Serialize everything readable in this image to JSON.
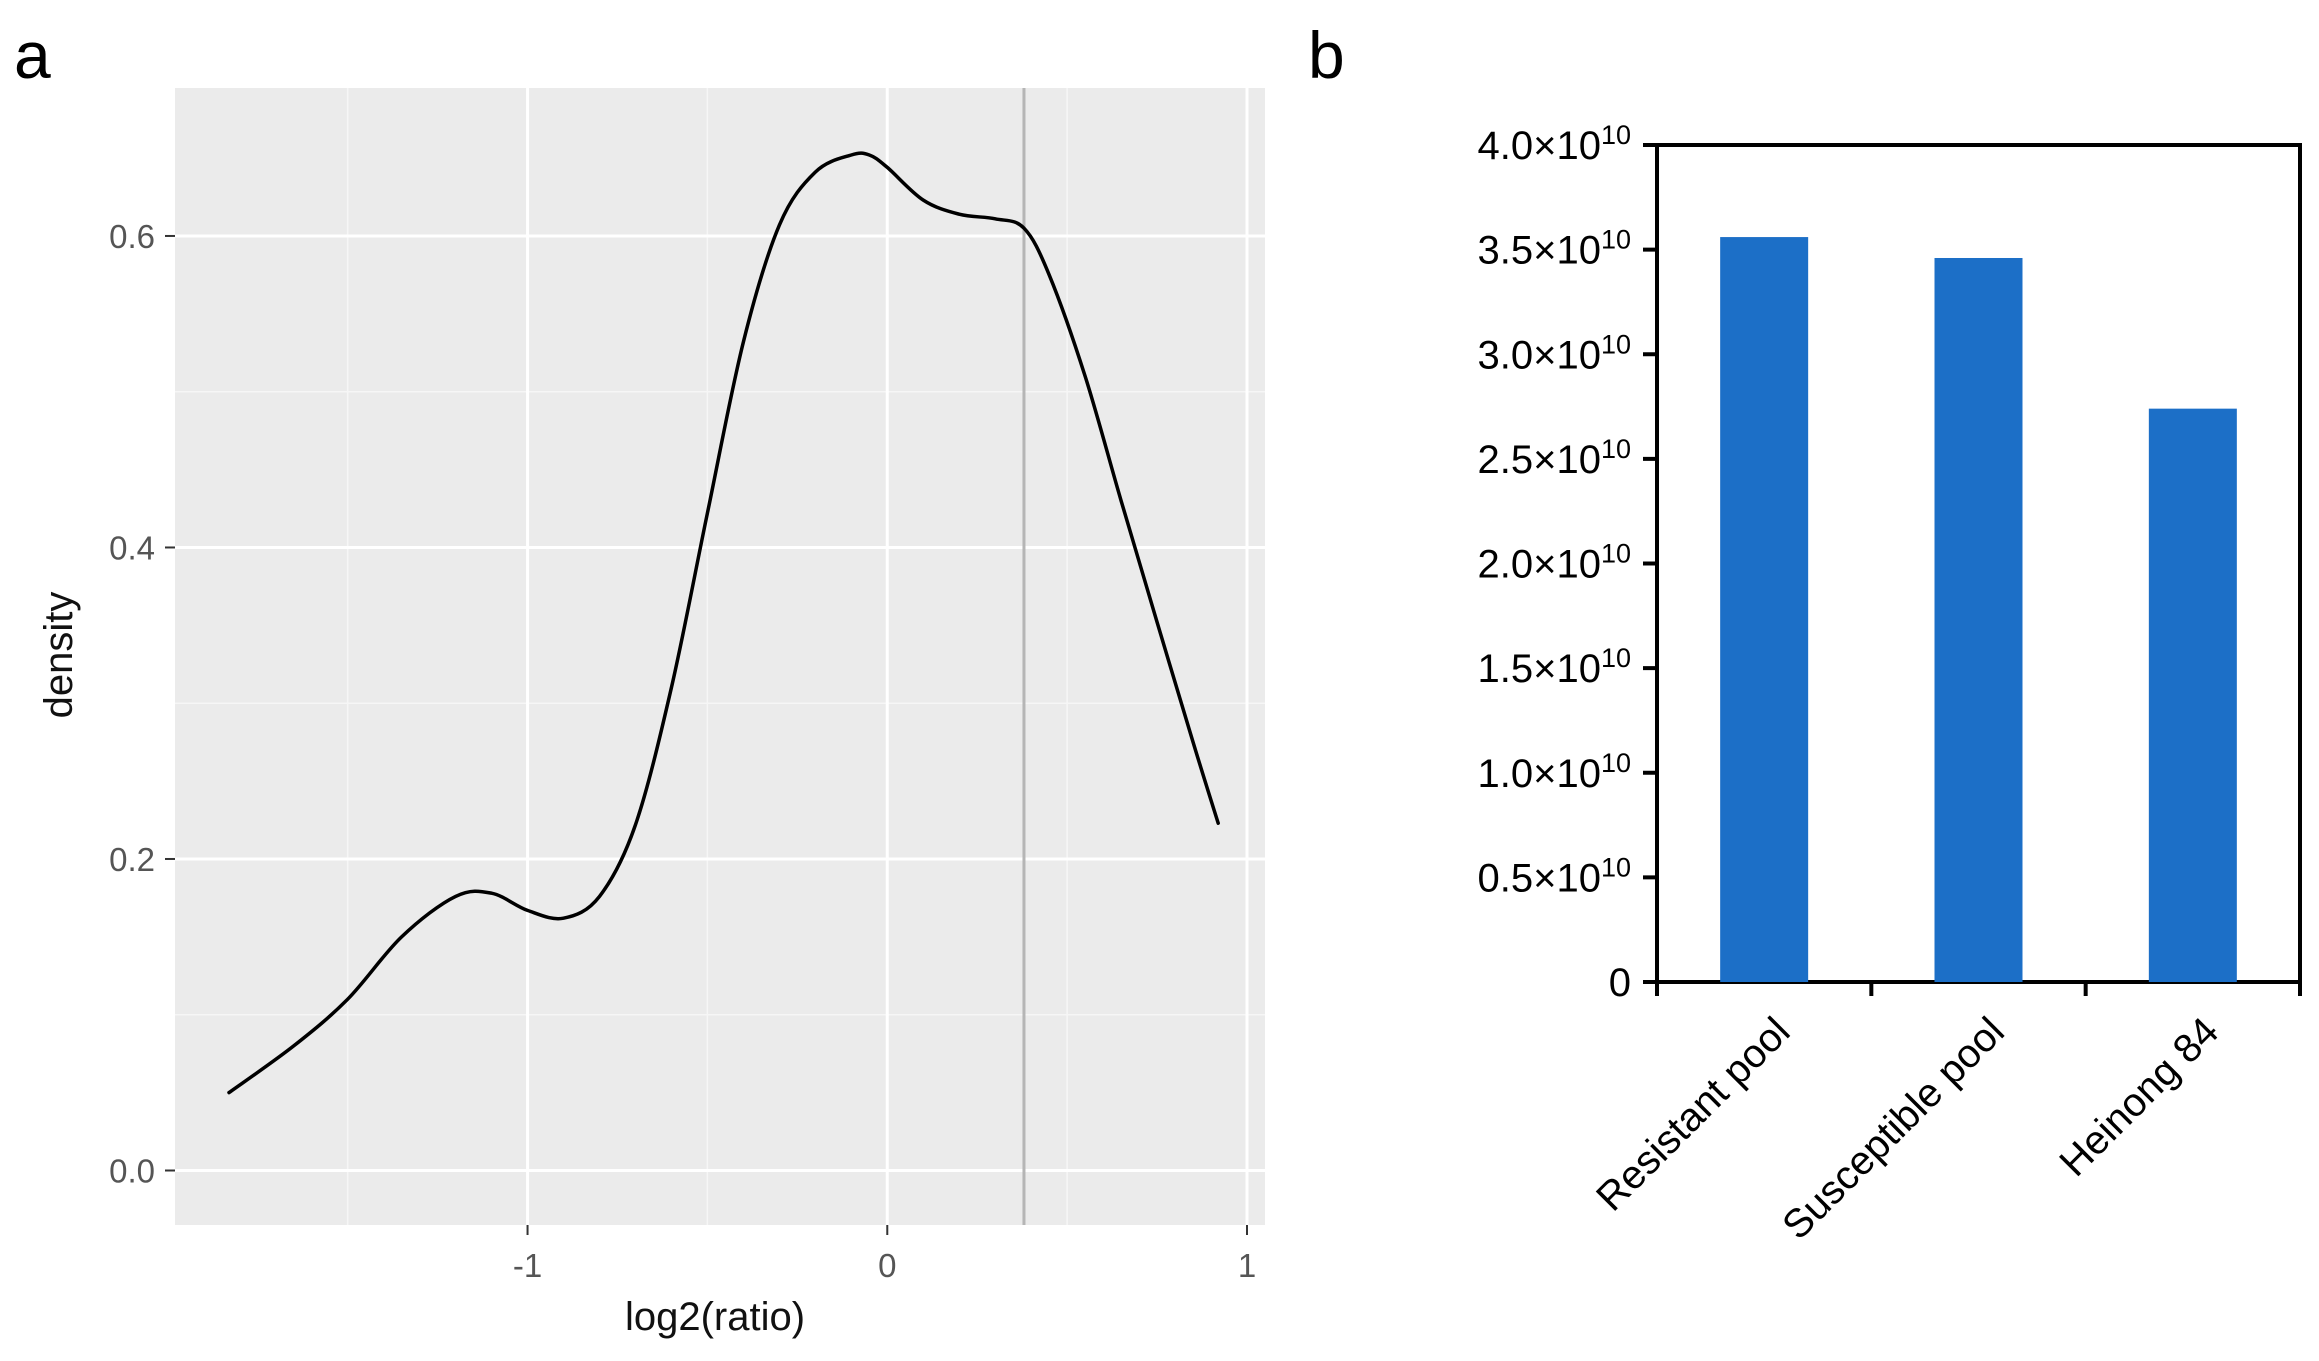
{
  "panels": {
    "a": {
      "letter": "a"
    },
    "b": {
      "letter": "b"
    }
  },
  "chart_data": [
    {
      "panel": "a",
      "type": "line",
      "title": "",
      "xlabel": "log2(ratio)",
      "ylabel": "density",
      "xlim": [
        -1.98,
        1.05
      ],
      "ylim": [
        -0.035,
        0.695
      ],
      "grid": true,
      "background": "#ebebeb",
      "line_color": "#000000",
      "x_ticks": [
        {
          "value": -1,
          "label": "-1"
        },
        {
          "value": 0,
          "label": "0"
        },
        {
          "value": 1,
          "label": "1"
        }
      ],
      "y_ticks": [
        {
          "value": 0.0,
          "label": "0.0"
        },
        {
          "value": 0.2,
          "label": "0.2"
        },
        {
          "value": 0.4,
          "label": "0.4"
        },
        {
          "value": 0.6,
          "label": "0.6"
        }
      ],
      "vline": {
        "x": 0.38,
        "color": "#b5b5b5"
      },
      "series": [
        {
          "name": "density",
          "x": [
            -1.83,
            -1.65,
            -1.5,
            -1.35,
            -1.2,
            -1.1,
            -1.0,
            -0.9,
            -0.8,
            -0.7,
            -0.6,
            -0.5,
            -0.4,
            -0.3,
            -0.2,
            -0.1,
            -0.05,
            0.0,
            0.1,
            0.2,
            0.3,
            0.38,
            0.45,
            0.55,
            0.65,
            0.75,
            0.85,
            0.92
          ],
          "y": [
            0.05,
            0.08,
            0.11,
            0.15,
            0.176,
            0.178,
            0.167,
            0.162,
            0.176,
            0.222,
            0.31,
            0.422,
            0.532,
            0.607,
            0.641,
            0.652,
            0.652,
            0.644,
            0.623,
            0.614,
            0.611,
            0.605,
            0.575,
            0.51,
            0.43,
            0.352,
            0.275,
            0.223
          ]
        }
      ]
    },
    {
      "panel": "b",
      "type": "bar",
      "title": "",
      "xlabel": "",
      "ylabel": "",
      "ylim": [
        0,
        40000000000
      ],
      "grid": false,
      "bar_color": "#1c6fc7",
      "categories": [
        "Resistant pool",
        "Susceptible pool",
        "Heinong 84"
      ],
      "values": [
        35600000000,
        34600000000,
        27400000000
      ],
      "y_ticks": [
        {
          "value": 0,
          "mantissa": "0",
          "exponent": ""
        },
        {
          "value": 5000000000,
          "mantissa": "0.5×10",
          "exponent": "10"
        },
        {
          "value": 10000000000,
          "mantissa": "1.0×10",
          "exponent": "10"
        },
        {
          "value": 15000000000,
          "mantissa": "1.5×10",
          "exponent": "10"
        },
        {
          "value": 20000000000,
          "mantissa": "2.0×10",
          "exponent": "10"
        },
        {
          "value": 25000000000,
          "mantissa": "2.5×10",
          "exponent": "10"
        },
        {
          "value": 30000000000,
          "mantissa": "3.0×10",
          "exponent": "10"
        },
        {
          "value": 35000000000,
          "mantissa": "3.5×10",
          "exponent": "10"
        },
        {
          "value": 40000000000,
          "mantissa": "4.0×10",
          "exponent": "10"
        }
      ]
    }
  ]
}
